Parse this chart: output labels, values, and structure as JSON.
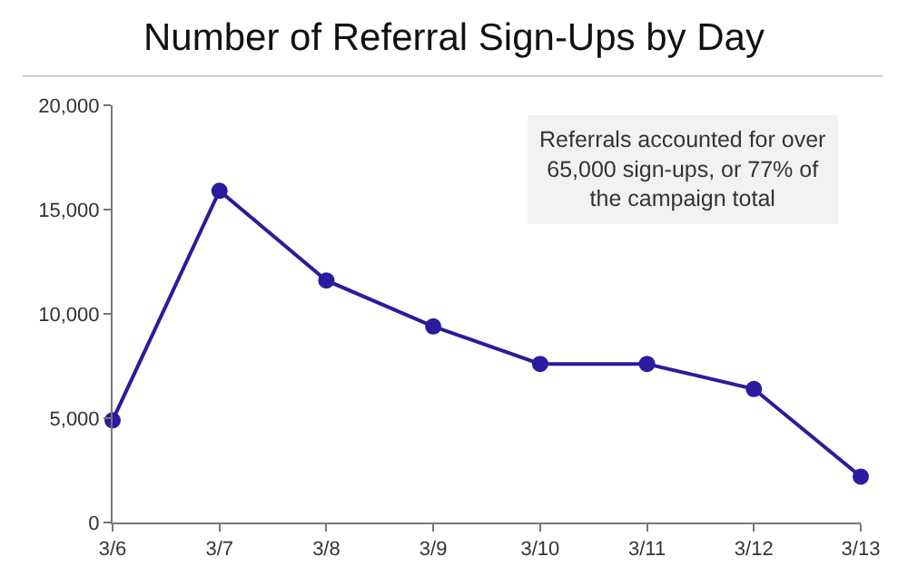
{
  "chart_data": {
    "type": "line",
    "title": "Number of Referral Sign-Ups by Day",
    "categories": [
      "3/6",
      "3/7",
      "3/8",
      "3/9",
      "3/10",
      "3/11",
      "3/12",
      "3/13"
    ],
    "series": [
      {
        "color": "#2b1b9e",
        "values": [
          4900,
          15900,
          11600,
          9400,
          7600,
          7600,
          6400,
          2200
        ]
      }
    ],
    "ylim": [
      0,
      20000
    ],
    "yticks": [
      {
        "value": 0,
        "label": "0"
      },
      {
        "value": 5000,
        "label": "5,000"
      },
      {
        "value": 10000,
        "label": "10,000"
      },
      {
        "value": 15000,
        "label": "15,000"
      },
      {
        "value": 20000,
        "label": "20,000"
      }
    ],
    "annotations": [
      "Referrals accounted for over\n65,000 sign-ups, or 77% of\nthe campaign total"
    ],
    "marker": "circle",
    "line_style": "solid"
  }
}
